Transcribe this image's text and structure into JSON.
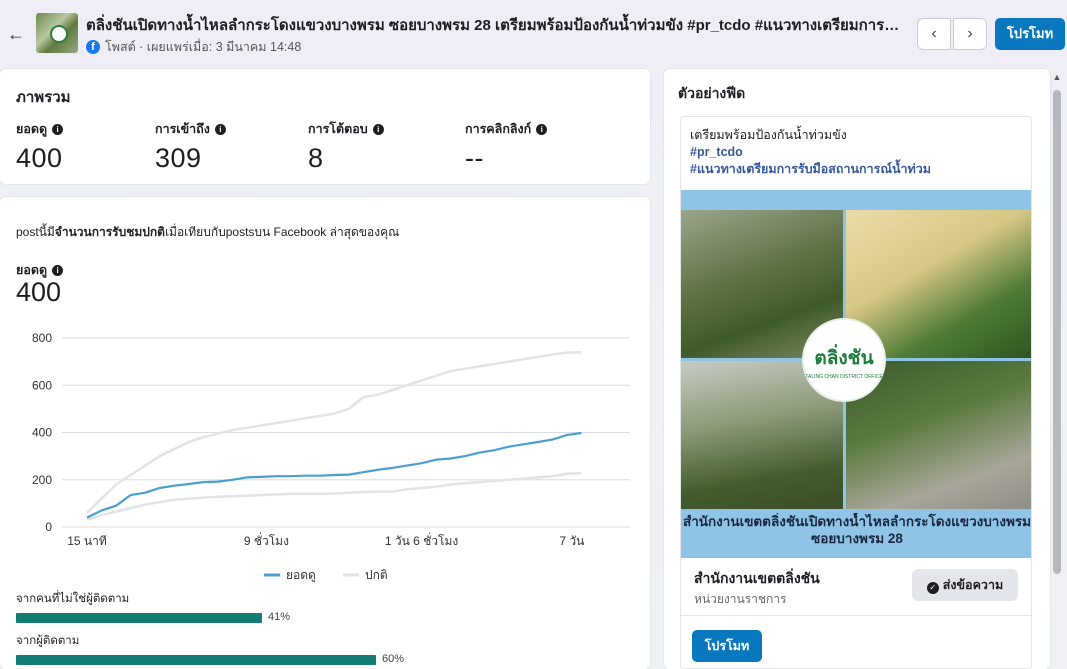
{
  "header": {
    "back_icon": "arrow-left-icon",
    "title": "ตลิ่งชันเปิดทางน้ำไหลลำกระโดงแขวงบางพรม ซอยบางพรม 28 เตรียมพร้อมป้องกันน้ำท่วมขัง #pr_tcdo #แนวทางเตรียมการรับมือสถานการณ์น้ำท่วม",
    "meta": "โพสต์ · เผยแพร่เมื่อ: 3 มีนาคม 14:48",
    "prev_icon": "‹",
    "next_icon": "›",
    "promote_label": "โปรโมท"
  },
  "overview": {
    "title": "ภาพรวม",
    "metrics": [
      {
        "label": "ยอดดู",
        "value": "400"
      },
      {
        "label": "การเข้าถึง",
        "value": "309"
      },
      {
        "label": "การโต้ตอบ",
        "value": "8"
      },
      {
        "label": "การคลิกลิงก์",
        "value": "--"
      }
    ]
  },
  "performance": {
    "desc_pre": "postนี้มี",
    "desc_bold": "จำนวนการรับชมปกติ",
    "desc_post": "เมื่อเทียบกับpostsบน Facebook ล่าสุดของคุณ",
    "views_label": "ยอดดู",
    "views_value": "400",
    "legend_views": "ยอดดู",
    "legend_typical": "ปกติ",
    "bars": [
      {
        "label": "จากคนที่ไม่ใช่ผู้ติดตาม",
        "percent": 41,
        "percent_text": "41%"
      },
      {
        "label": "จากผู้ติดตาม",
        "percent": 60,
        "percent_text": "60%"
      }
    ]
  },
  "chart_data": {
    "type": "line",
    "x_ticks": [
      "15 นาที",
      "9 ชั่วโมง",
      "1 วัน 6 ชั่วโมง",
      "7 วัน"
    ],
    "ylim": [
      0,
      800
    ],
    "y_ticks": [
      "0",
      "200",
      "400",
      "600",
      "800"
    ],
    "grid": true,
    "legend_position": "bottom",
    "colors": {
      "views": "#4a9fd0",
      "typical_band": "#e2e3e5"
    },
    "series": [
      {
        "name": "ยอดดู",
        "x": [
          0,
          3,
          6,
          9,
          12,
          15,
          18,
          21,
          24,
          27,
          30,
          33,
          36,
          39,
          42,
          45,
          48,
          51,
          54,
          57,
          60,
          63,
          66,
          69,
          72,
          75,
          78,
          81,
          84,
          87,
          90,
          93,
          96,
          99,
          102
        ],
        "values": [
          40,
          70,
          90,
          135,
          145,
          165,
          175,
          182,
          190,
          192,
          200,
          210,
          212,
          215,
          215,
          217,
          217,
          220,
          222,
          232,
          242,
          250,
          260,
          270,
          285,
          290,
          300,
          315,
          325,
          340,
          350,
          360,
          370,
          390,
          398
        ]
      },
      {
        "name": "ปกติ",
        "upper": [
          60,
          120,
          180,
          220,
          260,
          300,
          330,
          360,
          380,
          395,
          410,
          420,
          430,
          440,
          450,
          460,
          470,
          480,
          500,
          550,
          560,
          580,
          600,
          620,
          640,
          660,
          670,
          680,
          690,
          700,
          710,
          720,
          730,
          738,
          740
        ],
        "lower": [
          30,
          50,
          65,
          80,
          95,
          105,
          115,
          120,
          125,
          128,
          130,
          132,
          135,
          138,
          140,
          140,
          140,
          142,
          145,
          148,
          150,
          150,
          160,
          165,
          170,
          180,
          185,
          190,
          195,
          200,
          205,
          210,
          215,
          225,
          228
        ]
      }
    ]
  },
  "preview": {
    "title": "ตัวอย่างฟีด",
    "text_line": "เตรียมพร้อมป้องกันน้ำท่วมขัง",
    "tag1": "#pr_tcdo",
    "tag2": "#แนวทางเตรียมการรับมือสถานการณ์น้ำท่วม",
    "logo_text": "ตลิ่งชัน",
    "logo_sub": "TALING CHAN DISTRICT OFFICE",
    "caption_line1": "สำนักงานเขตตลิ่งชันเปิดทางน้ำไหลลำกระโดงแขวงบางพรม",
    "caption_line2": "ซอยบางพรม 28",
    "page_name": "สำนักงานเขตตลิ่งชัน",
    "page_category": "หน่วยงานราชการ",
    "message_label": "ส่งข้อความ",
    "promote_label": "โปรโมท"
  }
}
